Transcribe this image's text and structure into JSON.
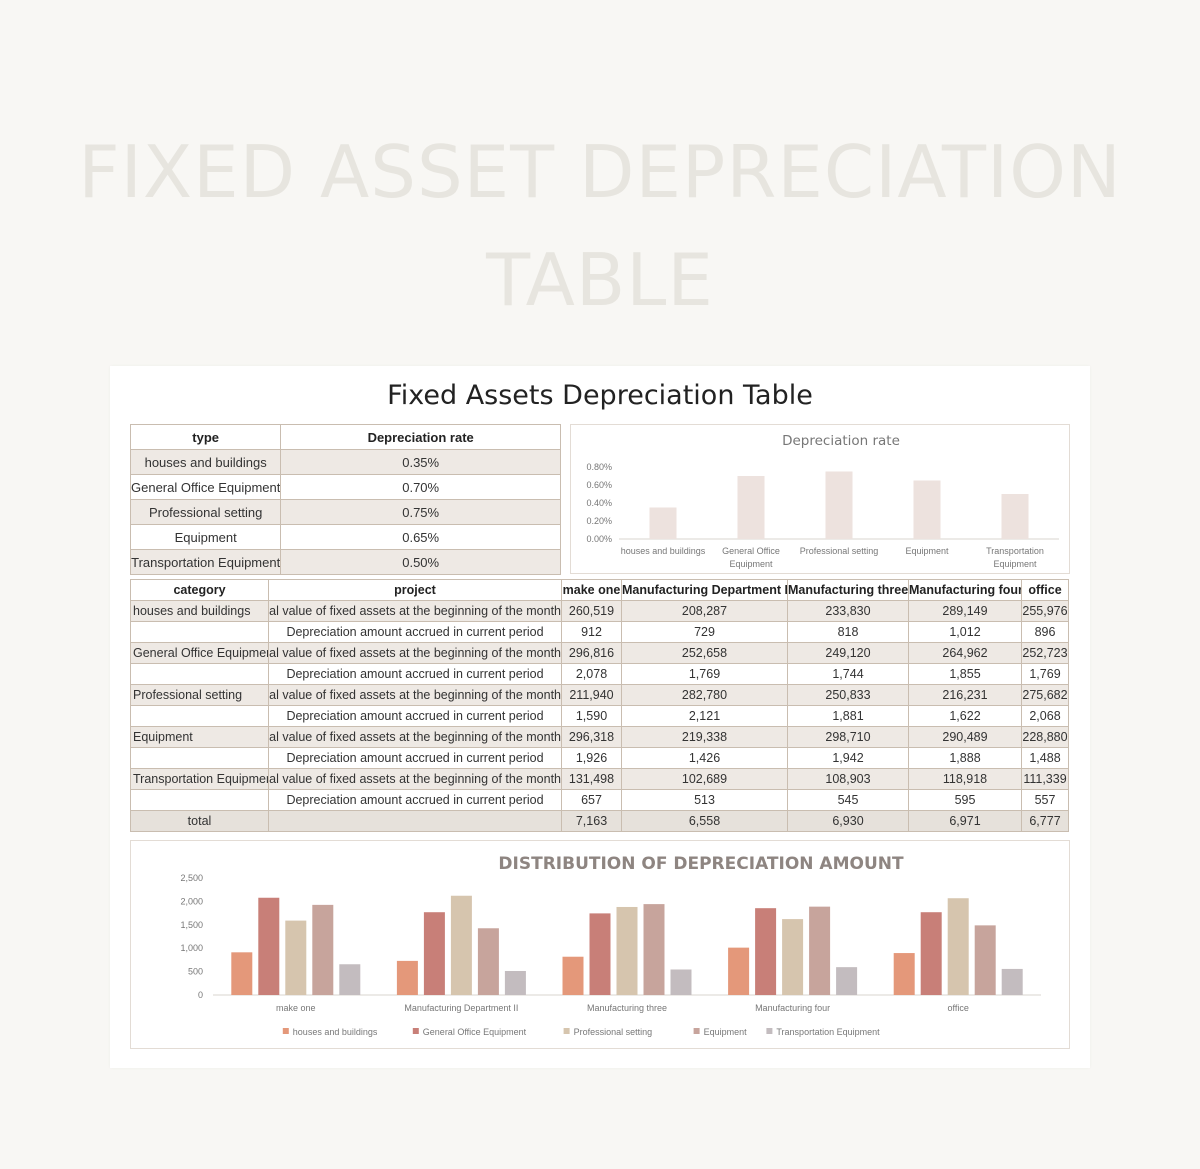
{
  "hero_title": "FIXED ASSET DEPRECIATION TABLE",
  "card_title": "Fixed Assets Depreciation Table",
  "rate_table": {
    "headers": [
      "type",
      "Depreciation rate"
    ],
    "rows": [
      [
        "houses and buildings",
        "0.35%"
      ],
      [
        "General Office Equipment",
        "0.70%"
      ],
      [
        "Professional setting",
        "0.75%"
      ],
      [
        "Equipment",
        "0.65%"
      ],
      [
        "Transportation Equipment",
        "0.50%"
      ]
    ]
  },
  "main_table": {
    "headers": [
      "category",
      "project",
      "make one",
      "Manufacturing Department II",
      "Manufacturing three",
      "Manufacturing four",
      "office"
    ],
    "rows": [
      [
        "houses and buildings",
        "Original value of fixed assets at the beginning of the month",
        "260,519",
        "208,287",
        "233,830",
        "289,149",
        "255,976"
      ],
      [
        "",
        "Depreciation amount accrued in current period",
        "912",
        "729",
        "818",
        "1,012",
        "896"
      ],
      [
        "General Office Equipment",
        "Original value of fixed assets at the beginning of the month",
        "296,816",
        "252,658",
        "249,120",
        "264,962",
        "252,723"
      ],
      [
        "",
        "Depreciation amount accrued in current period",
        "2,078",
        "1,769",
        "1,744",
        "1,855",
        "1,769"
      ],
      [
        "Professional setting",
        "Original value of fixed assets at the beginning of the month",
        "211,940",
        "282,780",
        "250,833",
        "216,231",
        "275,682"
      ],
      [
        "",
        "Depreciation amount accrued in current period",
        "1,590",
        "2,121",
        "1,881",
        "1,622",
        "2,068"
      ],
      [
        "Equipment",
        "Original value of fixed assets at the beginning of the month",
        "296,318",
        "219,338",
        "298,710",
        "290,489",
        "228,880"
      ],
      [
        "",
        "Depreciation amount accrued in current period",
        "1,926",
        "1,426",
        "1,942",
        "1,888",
        "1,488"
      ],
      [
        "Transportation Equipment",
        "Original value of fixed assets at the beginning of the month",
        "131,498",
        "102,689",
        "108,903",
        "118,918",
        "111,339"
      ],
      [
        "",
        "Depreciation amount accrued in current period",
        "657",
        "513",
        "545",
        "595",
        "557"
      ],
      [
        "total",
        "",
        "7,163",
        "6,558",
        "6,930",
        "6,971",
        "6,777"
      ]
    ]
  },
  "chart_data": [
    {
      "type": "bar",
      "title": "Depreciation rate",
      "categories": [
        "houses and buildings",
        "General Office Equipment",
        "Professional setting",
        "Equipment",
        "Transportation Equipment"
      ],
      "values": [
        0.35,
        0.7,
        0.75,
        0.65,
        0.5
      ],
      "ylim": [
        0,
        0.8
      ],
      "yticks": [
        "0.00%",
        "0.20%",
        "0.40%",
        "0.60%",
        "0.80%"
      ],
      "color": "#ede2de"
    },
    {
      "type": "bar",
      "title": "DISTRIBUTION OF DEPRECIATION AMOUNT",
      "categories": [
        "make one",
        "Manufacturing Department II",
        "Manufacturing three",
        "Manufacturing four",
        "office"
      ],
      "series": [
        {
          "name": "houses and buildings",
          "color": "#e4987a",
          "values": [
            912,
            729,
            818,
            1012,
            896
          ]
        },
        {
          "name": "General Office Equipment",
          "color": "#c87f78",
          "values": [
            2078,
            1769,
            1744,
            1855,
            1769
          ]
        },
        {
          "name": "Professional setting",
          "color": "#d6c5ae",
          "values": [
            1590,
            2121,
            1881,
            1622,
            2068
          ]
        },
        {
          "name": "Equipment",
          "color": "#c7a49c",
          "values": [
            1926,
            1426,
            1942,
            1888,
            1488
          ]
        },
        {
          "name": "Transportation Equipment",
          "color": "#c3bcbf",
          "values": [
            657,
            513,
            545,
            595,
            557
          ]
        }
      ],
      "ylim": [
        0,
        2500
      ],
      "yticks": [
        "0",
        "500",
        "1,000",
        "1,500",
        "2,000",
        "2,500"
      ],
      "legend": "bottom"
    }
  ]
}
